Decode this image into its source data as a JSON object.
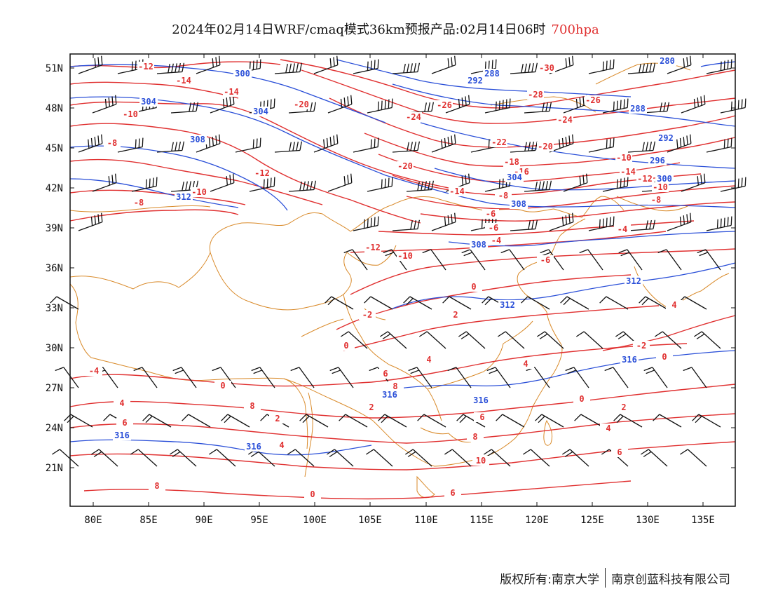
{
  "header": {
    "title": "2024年02月14日WRF/cmaq模式36km预报产品:02月14日06时",
    "level": "700hpa"
  },
  "axes": {
    "lat_labels": [
      "51N",
      "48N",
      "45N",
      "42N",
      "39N",
      "36N",
      "33N",
      "30N",
      "27N",
      "24N",
      "21N"
    ],
    "lon_labels": [
      "80E",
      "85E",
      "90E",
      "95E",
      "100E",
      "105E",
      "110E",
      "115E",
      "120E",
      "125E",
      "130E",
      "135E"
    ]
  },
  "chart_data": {
    "type": "map",
    "title": "2024年02月14日WRF/cmaq模式36km预报产品:02月14日06时",
    "level": "700hpa",
    "lon_range": [
      78,
      138
    ],
    "lat_range": [
      18,
      52
    ],
    "fields": [
      {
        "name": "temperature",
        "color": "#e03030",
        "labels": [
          "-12",
          "-14",
          "-14",
          "-10",
          "-8",
          "-20",
          "-12",
          "-10",
          "-8",
          "-30",
          "-28",
          "-26",
          "-26",
          "-24",
          "-24",
          "-22",
          "-20",
          "-20",
          "-18",
          "-16",
          "-14",
          "-10",
          "-14",
          "-12",
          "-10",
          "-8",
          "-6",
          "-8",
          "-6",
          "-4",
          "-4",
          "-12",
          "-10",
          "0",
          "-2",
          "0",
          "2",
          "4",
          "6",
          "-2",
          "0",
          "4",
          "4",
          "0",
          "-2",
          "-6",
          "0",
          "2",
          "4",
          "6",
          "8",
          "2",
          "4",
          "6",
          "8",
          "2",
          "4",
          "6",
          "8",
          "10",
          "6",
          "8",
          "0",
          "-4"
        ]
      },
      {
        "name": "geopotential_height",
        "color": "#2a4fd8",
        "labels": [
          "288",
          "300",
          "292",
          "304",
          "304",
          "308",
          "312",
          "280",
          "288",
          "292",
          "296",
          "300",
          "304",
          "308",
          "308",
          "312",
          "312",
          "316",
          "316",
          "316",
          "316",
          "316"
        ]
      }
    ],
    "wind_barbs": true
  },
  "footer": {
    "copyright_left": "版权所有:南京大学",
    "copyright_right": "南京创蓝科技有限公司"
  }
}
